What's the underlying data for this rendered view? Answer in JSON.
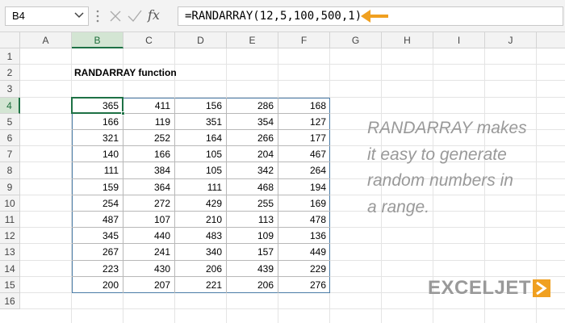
{
  "formula_bar": {
    "name_box": "B4",
    "fx_label": "fx",
    "formula": "=RANDARRAY(12,5,100,500,1)"
  },
  "columns": [
    "A",
    "B",
    "C",
    "D",
    "E",
    "F",
    "G",
    "H",
    "I",
    "J"
  ],
  "rows": [
    1,
    2,
    3,
    4,
    5,
    6,
    7,
    8,
    9,
    10,
    11,
    12,
    13,
    14,
    15,
    16
  ],
  "sheet_title": "RANDARRAY function",
  "table": {
    "rows": [
      [
        365,
        411,
        156,
        286,
        168
      ],
      [
        166,
        119,
        351,
        354,
        127
      ],
      [
        321,
        252,
        164,
        266,
        177
      ],
      [
        140,
        166,
        105,
        204,
        467
      ],
      [
        111,
        384,
        105,
        342,
        264
      ],
      [
        159,
        364,
        111,
        468,
        194
      ],
      [
        254,
        272,
        429,
        255,
        169
      ],
      [
        487,
        107,
        210,
        113,
        478
      ],
      [
        345,
        440,
        483,
        109,
        136
      ],
      [
        267,
        241,
        340,
        157,
        449
      ],
      [
        223,
        430,
        206,
        439,
        229
      ],
      [
        200,
        207,
        221,
        206,
        276
      ]
    ]
  },
  "note": [
    "RANDARRAY makes",
    "it easy to generate",
    "random numbers in",
    "a range."
  ],
  "logo": "EXCELJET"
}
